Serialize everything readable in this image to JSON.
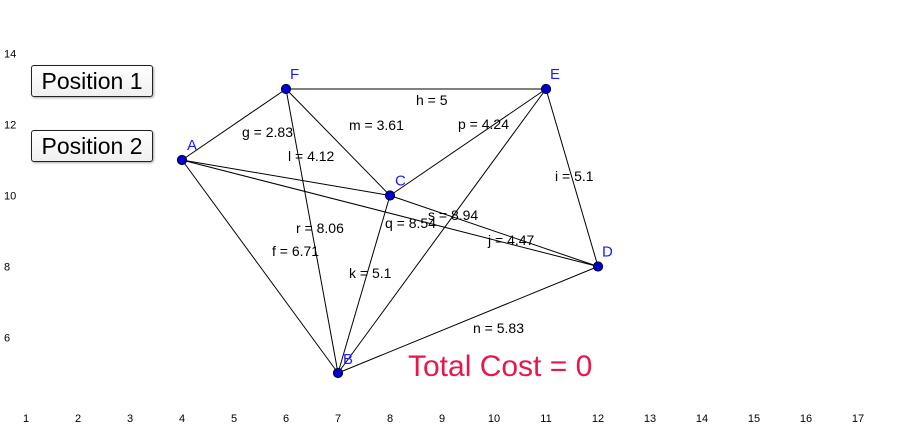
{
  "buttons": {
    "position1": "Position 1",
    "position2": "Position 2"
  },
  "total_cost_label": "Total Cost = 0",
  "colors": {
    "vertex_fill": "#0000cc",
    "vertex_label": "#1a1aff",
    "edge": "#000000",
    "total_cost": "#e8174a"
  },
  "x_ticks": [
    "1",
    "2",
    "3",
    "4",
    "5",
    "6",
    "7",
    "8",
    "9",
    "10",
    "11",
    "12",
    "13",
    "14",
    "15",
    "16",
    "17"
  ],
  "y_ticks": [
    "6",
    "8",
    "10",
    "12",
    "14"
  ],
  "vertices": [
    {
      "id": "A",
      "x": 4,
      "y": 11
    },
    {
      "id": "B",
      "x": 7,
      "y": 5
    },
    {
      "id": "C",
      "x": 8,
      "y": 10
    },
    {
      "id": "D",
      "x": 12,
      "y": 8
    },
    {
      "id": "E",
      "x": 11,
      "y": 13
    },
    {
      "id": "F",
      "x": 6,
      "y": 13
    }
  ],
  "edges": [
    {
      "name": "f",
      "from": "A",
      "to": "B",
      "label": "f = 6.71"
    },
    {
      "name": "g",
      "from": "A",
      "to": "F",
      "label": "g = 2.83"
    },
    {
      "name": "q",
      "from": "A",
      "to": "D",
      "label": "q = 8.54"
    },
    {
      "name": "h",
      "from": "F",
      "to": "E",
      "label": "h = 5"
    },
    {
      "name": "m",
      "from": "F",
      "to": "C",
      "label": "m = 3.61"
    },
    {
      "name": "r",
      "from": "F",
      "to": "B",
      "label": "r = 8.06"
    },
    {
      "name": "p",
      "from": "C",
      "to": "E",
      "label": "p = 4.24"
    },
    {
      "name": "l",
      "from": "A",
      "to": "C",
      "label": "l = 4.12"
    },
    {
      "name": "i",
      "from": "E",
      "to": "D",
      "label": "i = 5.1"
    },
    {
      "name": "s",
      "from": "E",
      "to": "B",
      "label": "s = 8.94"
    },
    {
      "name": "j",
      "from": "C",
      "to": "D",
      "label": "j = 4.47"
    },
    {
      "name": "k",
      "from": "C",
      "to": "B",
      "label": "k = 5.1"
    },
    {
      "name": "n",
      "from": "B",
      "to": "D",
      "label": "n = 5.83"
    }
  ]
}
